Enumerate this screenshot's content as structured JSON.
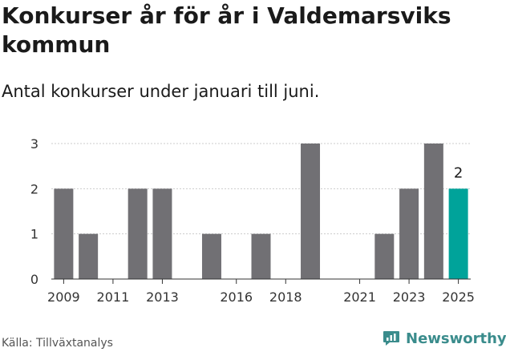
{
  "title": "Konkurser år för år i Valdemarsviks kommun",
  "subtitle": "Antal konkurser under januari till juni.",
  "source": "Källa: Tillväxtanalys",
  "brand": {
    "name": "Newsworthy",
    "icon": "newsworthy-logo-icon",
    "color": "#3a8c8c"
  },
  "chart_data": {
    "type": "bar",
    "x": [
      2009,
      2010,
      2011,
      2012,
      2013,
      2014,
      2015,
      2016,
      2017,
      2018,
      2019,
      2020,
      2021,
      2022,
      2023,
      2024,
      2025
    ],
    "values": [
      2,
      1,
      0,
      2,
      2,
      0,
      1,
      0,
      1,
      0,
      3,
      0,
      0,
      1,
      2,
      3,
      2
    ],
    "x_ticks": [
      2009,
      2011,
      2013,
      2016,
      2018,
      2021,
      2023,
      2025
    ],
    "y_ticks": [
      0,
      1,
      2,
      3
    ],
    "ylim": [
      0,
      3
    ],
    "highlight": {
      "x": 2025,
      "label": "2"
    },
    "colors": {
      "bar": "#717074",
      "highlight": "#00a39a",
      "grid": "#cccccc",
      "axis": "#333333"
    },
    "grid": true,
    "title": "Konkurser år för år i Valdemarsviks kommun",
    "xlabel": "",
    "ylabel": ""
  }
}
